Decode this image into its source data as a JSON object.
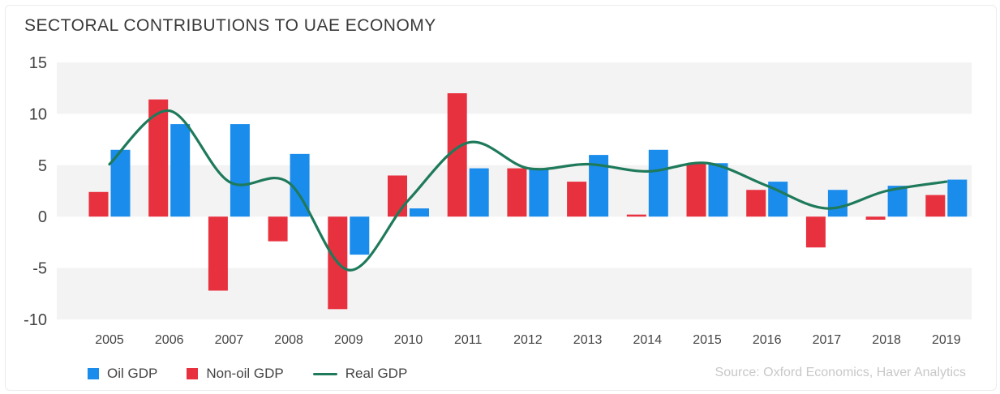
{
  "chart_data": {
    "type": "bar",
    "title": "SECTORAL CONTRIBUTIONS TO UAE ECONOMY",
    "categories": [
      "2005",
      "2006",
      "2007",
      "2008",
      "2009",
      "2010",
      "2011",
      "2012",
      "2013",
      "2014",
      "2015",
      "2016",
      "2017",
      "2018",
      "2019"
    ],
    "series": [
      {
        "name": "Non-oil GDP",
        "kind": "bar",
        "color": "#e8313f",
        "values": [
          2.4,
          11.4,
          -7.2,
          -2.4,
          -9.0,
          4.0,
          12.0,
          4.7,
          3.4,
          0.2,
          5.2,
          2.6,
          -3.0,
          -0.3,
          2.1
        ]
      },
      {
        "name": "Oil GDP",
        "kind": "bar",
        "color": "#1a8cec",
        "values": [
          6.5,
          9.0,
          9.0,
          6.1,
          -3.7,
          0.8,
          4.7,
          4.6,
          6.0,
          6.5,
          5.2,
          3.4,
          2.6,
          3.0,
          3.6
        ]
      },
      {
        "name": "Real GDP",
        "kind": "line",
        "color": "#1e7a5a",
        "values": [
          5.1,
          10.3,
          3.4,
          3.3,
          -5.2,
          1.6,
          7.2,
          4.7,
          5.1,
          4.4,
          5.2,
          3.0,
          0.8,
          2.5,
          3.4
        ]
      }
    ],
    "yticks": [
      15,
      10,
      5,
      0,
      -5,
      -10
    ],
    "ylim": [
      -10,
      15
    ],
    "legend_position": "bottom-left",
    "source": "Source: Oxford Economics, Haver Analytics",
    "colors": {
      "band": "#f3f3f3",
      "axis": "#444444"
    }
  }
}
